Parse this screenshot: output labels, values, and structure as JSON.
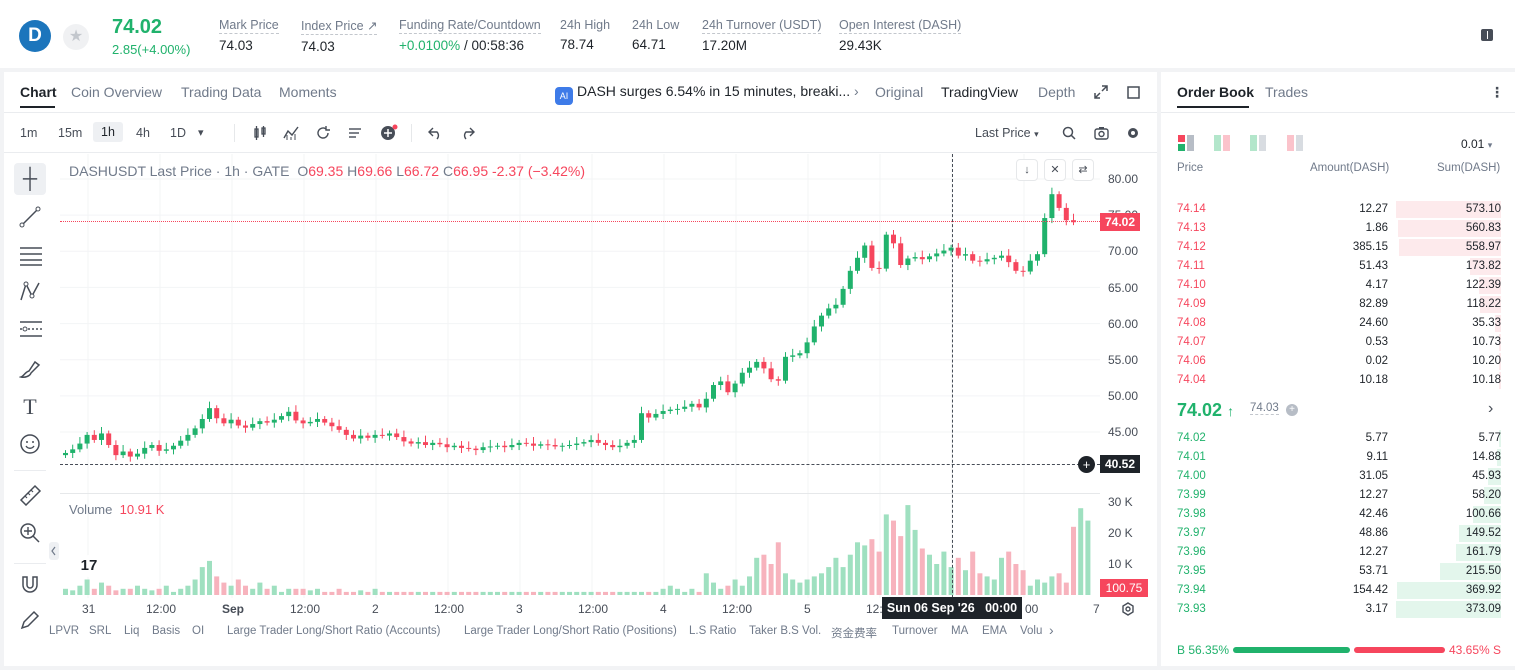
{
  "header": {
    "coin_logo": "D",
    "last_price": "74.02",
    "change": "2.85(+4.00%)",
    "stats": [
      {
        "label": "Mark Price",
        "value": "74.03"
      },
      {
        "label": "Index Price ↗",
        "value": "74.03"
      },
      {
        "label": "Funding Rate/Countdown",
        "value_green": "+0.0100%",
        "value": " / 00:58:36"
      },
      {
        "label": "24h High",
        "value": "78.74"
      },
      {
        "label": "24h Low",
        "value": "64.71"
      },
      {
        "label": "24h Turnover (USDT)",
        "value": "17.20M"
      },
      {
        "label": "Open Interest (DASH)",
        "value": "29.43K"
      }
    ]
  },
  "chart_tabs": [
    "Chart",
    "Coin Overview",
    "Trading Data",
    "Moments"
  ],
  "news": {
    "icon": "AI",
    "text": "DASH surges 6.54% in 15 minutes, breaki...",
    "chevron": "›"
  },
  "view_tabs": [
    "Original",
    "TradingView",
    "Depth"
  ],
  "timeframes": [
    "1m",
    "15m",
    "1h",
    "4h",
    "1D"
  ],
  "timeframe_dropdown": "▾",
  "price_type": "Last Price",
  "legend": {
    "symbol": "DASHUSDT Last Price · 1h · GATE",
    "o_label": "O",
    "o": "69.35",
    "h_label": "H",
    "h": "69.66",
    "l_label": "L",
    "l": "66.72",
    "c_label": "C",
    "c": "66.95",
    "chg": "-2.37 (−3.42%)"
  },
  "volume": {
    "label": "Volume",
    "value": "10.91 K"
  },
  "chart_data": {
    "type": "candlestick",
    "y_ticks": [
      "80.00",
      "75.00",
      "70.00",
      "65.00",
      "60.00",
      "55.00",
      "50.00",
      "45.00"
    ],
    "vol_ticks": [
      "30 K",
      "20 K",
      "10 K"
    ],
    "x_ticks": [
      "31",
      "12:00",
      "Sep",
      "12:00",
      "2",
      "12:00",
      "3",
      "12:00",
      "4",
      "12:00",
      "5",
      "12:",
      "00",
      "7"
    ],
    "last_price_tag": "74.02",
    "crosshair_price": "40.52",
    "volume_tag": "100.75",
    "crosshair_date": "Sun 06 Sep '26",
    "crosshair_time": "00:00",
    "closes": [
      42.1,
      42.6,
      43.4,
      44.6,
      43.9,
      44.8,
      43.2,
      41.8,
      42.3,
      41.6,
      42.0,
      42.8,
      43.2,
      42.4,
      42.6,
      43.1,
      43.8,
      44.6,
      45.5,
      46.8,
      48.3,
      46.9,
      46.2,
      46.7,
      45.9,
      45.6,
      46.1,
      46.5,
      46.3,
      46.7,
      47.2,
      47.8,
      46.6,
      46.2,
      46.4,
      46.8,
      46.3,
      45.8,
      45.3,
      44.6,
      44.1,
      44.5,
      44.2,
      44.6,
      44.5,
      44.8,
      44.3,
      43.7,
      43.4,
      43.6,
      43.2,
      43.5,
      43.3,
      42.9,
      43.1,
      42.8,
      42.7,
      42.5,
      42.9,
      43.0,
      43.1,
      42.9,
      43.2,
      43.5,
      43.4,
      43.1,
      43.3,
      43.2,
      43.0,
      43.1,
      43.2,
      43.4,
      43.6,
      43.9,
      43.5,
      43.2,
      42.9,
      43.1,
      43.5,
      43.9,
      47.6,
      47.0,
      47.5,
      47.9,
      48.1,
      48.2,
      48.5,
      48.9,
      48.4,
      49.6,
      51.5,
      52.0,
      50.5,
      51.7,
      53.2,
      53.9,
      54.7,
      53.8,
      52.3,
      52.1,
      55.4,
      55.6,
      55.9,
      57.4,
      59.6,
      61.1,
      62.1,
      62.6,
      64.8,
      67.3,
      69.1,
      70.8,
      67.7,
      67.6,
      72.3,
      71.1,
      68.1,
      69.0,
      69.2,
      68.9,
      69.3,
      69.7,
      70.1,
      70.5,
      69.4,
      69.6,
      68.7,
      68.6,
      68.9,
      69.1,
      69.4,
      68.5,
      67.3,
      67.2,
      68.7,
      69.6,
      74.6,
      77.9,
      76.0,
      74.3,
      74.02
    ],
    "volumes": [
      2,
      1.5,
      3,
      5,
      2,
      4,
      3,
      1.5,
      2,
      2,
      3,
      2,
      1.5,
      2,
      3,
      1,
      2,
      3,
      5,
      9,
      11,
      6,
      4,
      3,
      5,
      3,
      2,
      4,
      2,
      3,
      1,
      2,
      2,
      2,
      1.5,
      2,
      1,
      1,
      2,
      1,
      1,
      1.5,
      1,
      2,
      1,
      1,
      1,
      1,
      1,
      1,
      1,
      1,
      1,
      1,
      1,
      1,
      1,
      1,
      1,
      1,
      1,
      1,
      1,
      1,
      1,
      1,
      1,
      1,
      1,
      1,
      1,
      1,
      1,
      1,
      1,
      1,
      1,
      1,
      1,
      1,
      1,
      1,
      1,
      2,
      3,
      2,
      1,
      2,
      1,
      7,
      4,
      2,
      3,
      5,
      3,
      6,
      12,
      13,
      10,
      17,
      7,
      5,
      4,
      5,
      6,
      7,
      9,
      12,
      9,
      13,
      17,
      16,
      18,
      14,
      26,
      24,
      19,
      29,
      21,
      15,
      13,
      10,
      14,
      9,
      12,
      8,
      14,
      7,
      6,
      5,
      12,
      14,
      10,
      8,
      3,
      5,
      4,
      6,
      7,
      4,
      22,
      28,
      24
    ]
  },
  "drawing_tools": [
    "crosshair-icon",
    "trendline-icon",
    "fib-icon",
    "pattern-icon",
    "measure-icon",
    "brush-icon",
    "text-icon",
    "emoji-icon",
    "ruler-icon",
    "zoom-icon",
    "magnet-icon",
    "pencil-icon"
  ],
  "indicators": [
    "LPVR",
    "SRL",
    "Liq",
    "Basis",
    "OI",
    "Large Trader Long/Short Ratio (Accounts)",
    "Large Trader Long/Short Ratio (Positions)",
    "L.S Ratio",
    "Taker B.S Vol.",
    "资金费率",
    "Turnover",
    "MA",
    "EMA",
    "Volu"
  ],
  "orderbook": {
    "tabs": [
      "Order Book",
      "Trades"
    ],
    "precision": "0.01",
    "headers": {
      "price": "Price",
      "amount": "Amount(DASH)",
      "sum": "Sum(DASH)"
    },
    "asks": [
      {
        "price": "74.14",
        "amount": "12.27",
        "sum": "573.10",
        "depth": 1.0
      },
      {
        "price": "74.13",
        "amount": "1.86",
        "sum": "560.83",
        "depth": 0.98
      },
      {
        "price": "74.12",
        "amount": "385.15",
        "sum": "558.97",
        "depth": 0.97
      },
      {
        "price": "74.11",
        "amount": "51.43",
        "sum": "173.82",
        "depth": 0.3
      },
      {
        "price": "74.10",
        "amount": "4.17",
        "sum": "122.39",
        "depth": 0.21
      },
      {
        "price": "74.09",
        "amount": "82.89",
        "sum": "118.22",
        "depth": 0.2
      },
      {
        "price": "74.08",
        "amount": "24.60",
        "sum": "35.33",
        "depth": 0.06
      },
      {
        "price": "74.07",
        "amount": "0.53",
        "sum": "10.73",
        "depth": 0.02
      },
      {
        "price": "74.06",
        "amount": "0.02",
        "sum": "10.20",
        "depth": 0.02
      },
      {
        "price": "74.04",
        "amount": "10.18",
        "sum": "10.18",
        "depth": 0.02
      }
    ],
    "mid_price": "74.02",
    "mid_arrow": "↑",
    "mark_price": "74.03",
    "bids": [
      {
        "price": "74.02",
        "amount": "5.77",
        "sum": "5.77",
        "depth": 0.02
      },
      {
        "price": "74.01",
        "amount": "9.11",
        "sum": "14.88",
        "depth": 0.04
      },
      {
        "price": "74.00",
        "amount": "31.05",
        "sum": "45.93",
        "depth": 0.12
      },
      {
        "price": "73.99",
        "amount": "12.27",
        "sum": "58.20",
        "depth": 0.16
      },
      {
        "price": "73.98",
        "amount": "42.46",
        "sum": "100.66",
        "depth": 0.27
      },
      {
        "price": "73.97",
        "amount": "48.86",
        "sum": "149.52",
        "depth": 0.4
      },
      {
        "price": "73.96",
        "amount": "12.27",
        "sum": "161.79",
        "depth": 0.43
      },
      {
        "price": "73.95",
        "amount": "53.71",
        "sum": "215.50",
        "depth": 0.58
      },
      {
        "price": "73.94",
        "amount": "154.42",
        "sum": "369.92",
        "depth": 0.99
      },
      {
        "price": "73.93",
        "amount": "3.17",
        "sum": "373.09",
        "depth": 1.0
      }
    ],
    "buy_label": "B 56.35%",
    "sell_label": "43.65% S",
    "buy_ratio": 0.5635
  },
  "colors": {
    "up": "#20b26c",
    "down": "#f6465d",
    "text": "#1e2329",
    "muted": "#707a8a"
  }
}
